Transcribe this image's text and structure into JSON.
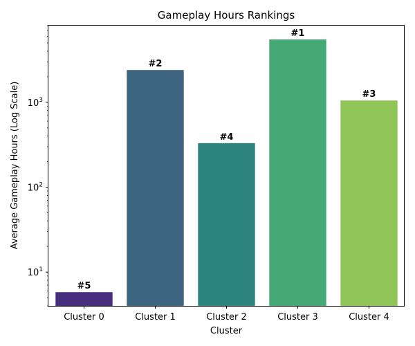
{
  "chart_data": {
    "type": "bar",
    "title": "Gameplay Hours Rankings",
    "xlabel": "Cluster",
    "ylabel": "Average Gameplay Hours (Log Scale)",
    "yscale": "log",
    "ylim": [
      4,
      8000
    ],
    "y_ticks": [
      {
        "value": 10,
        "base": "10",
        "exp": "1"
      },
      {
        "value": 100,
        "base": "10",
        "exp": "2"
      },
      {
        "value": 1000,
        "base": "10",
        "exp": "3"
      }
    ],
    "categories": [
      "Cluster 0",
      "Cluster 1",
      "Cluster 2",
      "Cluster 3",
      "Cluster 4"
    ],
    "values": [
      5.8,
      2400,
      330,
      5500,
      1050
    ],
    "rank_labels": [
      "#5",
      "#2",
      "#4",
      "#1",
      "#3"
    ],
    "colors": [
      "#472f7d",
      "#3e6683",
      "#2e8580",
      "#45a975",
      "#8fc657"
    ],
    "grid": false
  }
}
